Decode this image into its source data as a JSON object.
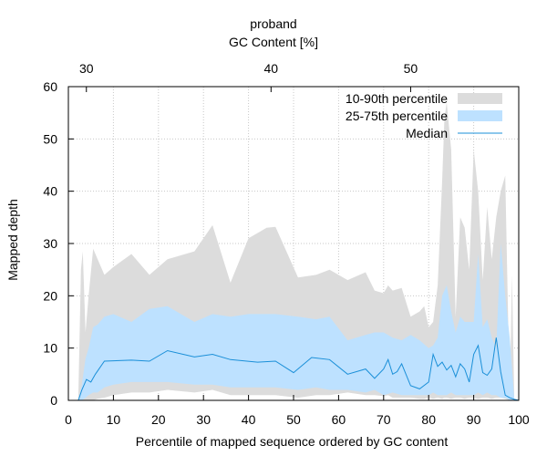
{
  "chart_data": {
    "type": "area",
    "title": "proband",
    "top_axis": {
      "label": "GC Content [%]",
      "ticks": [
        30,
        40,
        50
      ],
      "tick_positions_percentile": [
        4,
        45,
        76
      ]
    },
    "xlabel": "Percentile of mapped sequence ordered by GC content",
    "ylabel": "Mapped depth",
    "xlim": [
      0,
      100
    ],
    "ylim": [
      0,
      60
    ],
    "xticks": [
      0,
      10,
      20,
      30,
      40,
      50,
      60,
      70,
      80,
      90,
      100
    ],
    "yticks": [
      0,
      10,
      20,
      30,
      40,
      50,
      60
    ],
    "grid": true,
    "legend_position": "top-right",
    "colors": {
      "p10_90": "#dcdcdc",
      "p25_75": "#bde1ff",
      "median": "#1a8fd8",
      "grid": "#c8c8c8"
    },
    "series": [
      {
        "name": "10-90th percentile",
        "x": [
          2.2,
          2.8,
          3.2,
          3.8,
          4.5,
          5.5,
          6.5,
          8,
          10,
          14,
          18,
          22,
          28,
          32,
          36,
          40,
          44,
          46,
          51,
          55,
          58,
          62,
          66,
          68,
          70,
          71,
          72,
          74,
          76,
          78,
          79,
          80,
          81,
          82,
          83,
          83.5,
          84,
          85,
          86,
          87,
          88,
          89,
          90,
          91,
          92,
          93,
          94,
          95,
          96,
          97,
          98,
          98.5,
          99,
          100
        ],
        "upper": [
          0.5,
          25,
          28.5,
          13,
          20,
          29,
          27,
          24,
          25.5,
          28,
          24,
          27,
          28.5,
          33.5,
          22.5,
          31,
          33,
          33.2,
          23.5,
          24,
          25,
          23,
          24.5,
          21,
          20.5,
          22,
          21,
          21.5,
          16,
          17,
          18,
          14,
          15,
          22,
          42,
          54,
          57,
          48,
          16,
          35,
          33,
          25,
          48,
          40,
          23,
          37,
          27,
          35,
          40,
          43,
          0.5,
          24,
          0.3,
          0.1
        ],
        "lower": [
          0,
          0,
          0,
          0,
          0,
          0,
          0.3,
          0.5,
          1,
          1.5,
          1.5,
          2,
          1.5,
          2,
          1,
          1,
          1,
          1,
          0.5,
          1,
          1,
          1.5,
          1,
          1,
          0.8,
          1,
          0.5,
          0.5,
          0.5,
          0.3,
          0.3,
          0.5,
          0.3,
          0.5,
          0.3,
          0.5,
          0.5,
          0.3,
          0.5,
          0.5,
          0.3,
          0.5,
          0.5,
          0.3,
          0.5,
          0.5,
          0.3,
          0.5,
          0.5,
          0.3,
          0,
          0,
          0,
          0
        ]
      },
      {
        "name": "25-75th percentile",
        "x": [
          2.2,
          3,
          3.8,
          4.5,
          5.5,
          6.5,
          8,
          10,
          14,
          18,
          22,
          28,
          32,
          36,
          40,
          44,
          46,
          51,
          55,
          58,
          62,
          66,
          68,
          70,
          72,
          74,
          76,
          78,
          80,
          81,
          82,
          83,
          84,
          85,
          86,
          87,
          88,
          89,
          90,
          91,
          92,
          93,
          94,
          95,
          96,
          97,
          98,
          99,
          100
        ],
        "upper": [
          0.2,
          3,
          8,
          10,
          14,
          14.5,
          16,
          16.5,
          15,
          17.5,
          18,
          15,
          16.5,
          16,
          16.5,
          16.5,
          16.5,
          16,
          15.5,
          16,
          11.5,
          12.5,
          13,
          13,
          12,
          11.5,
          12.5,
          11.5,
          10,
          10.5,
          12,
          20,
          22,
          17,
          13,
          16,
          15,
          15,
          15,
          28,
          14,
          15.5,
          12,
          10,
          30,
          20,
          12,
          0.3,
          0.1
        ],
        "lower": [
          0,
          0,
          0.5,
          1,
          1.5,
          1.5,
          2.5,
          3,
          3.5,
          3.5,
          3.5,
          3,
          3,
          2.5,
          2.5,
          2.5,
          2.5,
          2,
          2.5,
          2,
          2,
          1.5,
          2,
          1,
          1.5,
          1,
          1,
          1,
          1,
          1.5,
          1,
          1,
          1,
          1.5,
          1,
          1,
          1,
          1,
          1,
          1.5,
          1,
          1.5,
          1,
          1,
          0.5,
          0.5,
          0,
          0,
          0
        ]
      },
      {
        "name": "Median",
        "x": [
          2.2,
          3,
          4,
          5,
          6,
          8,
          14,
          18,
          22,
          28,
          32,
          36,
          42,
          46,
          50,
          54,
          58,
          62,
          66,
          68,
          70,
          71,
          72,
          73,
          74,
          76,
          78,
          80,
          81,
          82,
          83,
          84,
          85,
          86,
          87,
          88,
          89,
          90,
          91,
          92,
          93,
          94,
          95,
          96,
          97,
          98,
          99,
          100
        ],
        "y": [
          0,
          2,
          4,
          3.5,
          5,
          7.5,
          7.7,
          7.5,
          9.5,
          8.3,
          8.8,
          7.8,
          7.3,
          7.5,
          5.3,
          8.2,
          7.8,
          5,
          6,
          4.2,
          6,
          7.8,
          5,
          5.5,
          7,
          2.8,
          2.2,
          3.5,
          8.8,
          6.5,
          7.3,
          5.8,
          6.7,
          4.5,
          7,
          6,
          3.5,
          8.8,
          10.5,
          5.3,
          4.8,
          6,
          12,
          5.5,
          1,
          0.5,
          0.2,
          0
        ]
      }
    ]
  }
}
